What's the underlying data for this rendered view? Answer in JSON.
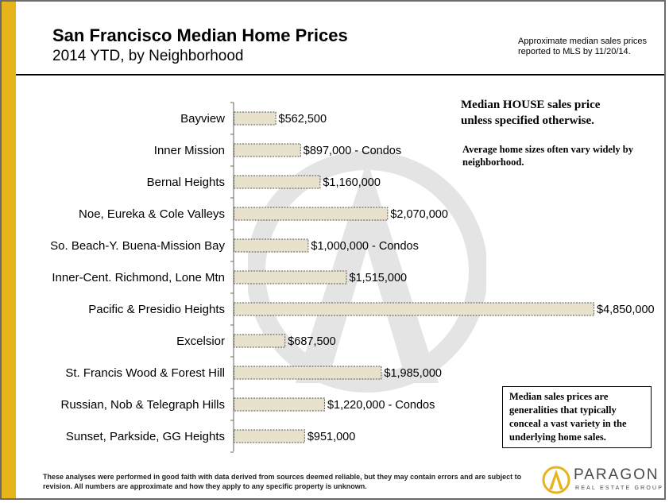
{
  "header": {
    "title": "San Francisco Median Home Prices",
    "subtitle": "2014 YTD, by Neighborhood"
  },
  "notes": {
    "mls": "Approximate median sales prices reported to MLS by 11/20/14.",
    "house_line1": "Median HOUSE sales price",
    "house_line2": "unless specified otherwise.",
    "sizes": "Average home sizes often vary widely by neighborhood.",
    "caveat": "Median  sales prices are generalities that typically conceal a vast variety in the underlying home sales."
  },
  "footer": {
    "disclaimer": "These analyses were performed in good faith with data derived from sources deemed reliable, but they may contain errors and are subject to revision. All numbers are approximate and how they apply to any specific property is unknown."
  },
  "logo": {
    "name": "PARAGON",
    "sub": "REAL ESTATE GROUP"
  },
  "colors": {
    "bar_fill": "#e8e2cc",
    "bar_border": "#555555",
    "accent_gold": "#e8b41c"
  },
  "chart_data": {
    "type": "bar",
    "orientation": "horizontal",
    "categories": [
      "Bayview",
      "Inner Mission",
      "Bernal Heights",
      "Noe, Eureka & Cole Valleys",
      "So. Beach-Y. Buena-Mission Bay",
      "Inner-Cent. Richmond, Lone Mtn",
      "Pacific & Presidio Heights",
      "Excelsior",
      "St. Francis Wood & Forest Hill",
      "Russian, Nob & Telegraph Hills",
      "Sunset, Parkside, GG Heights"
    ],
    "values": [
      562500,
      897000,
      1160000,
      2070000,
      1000000,
      1515000,
      4850000,
      687500,
      1985000,
      1220000,
      951000
    ],
    "data_labels": [
      "$562,500",
      "$897,000 - Condos",
      "$1,160,000",
      "$2,070,000",
      "$1,000,000 - Condos",
      "$1,515,000",
      "$4,850,000",
      "$687,500",
      "$1,985,000",
      "$1,220,000 - Condos",
      "$951,000"
    ],
    "xlim": [
      0,
      4850000
    ],
    "grid": false,
    "legend": "none"
  }
}
